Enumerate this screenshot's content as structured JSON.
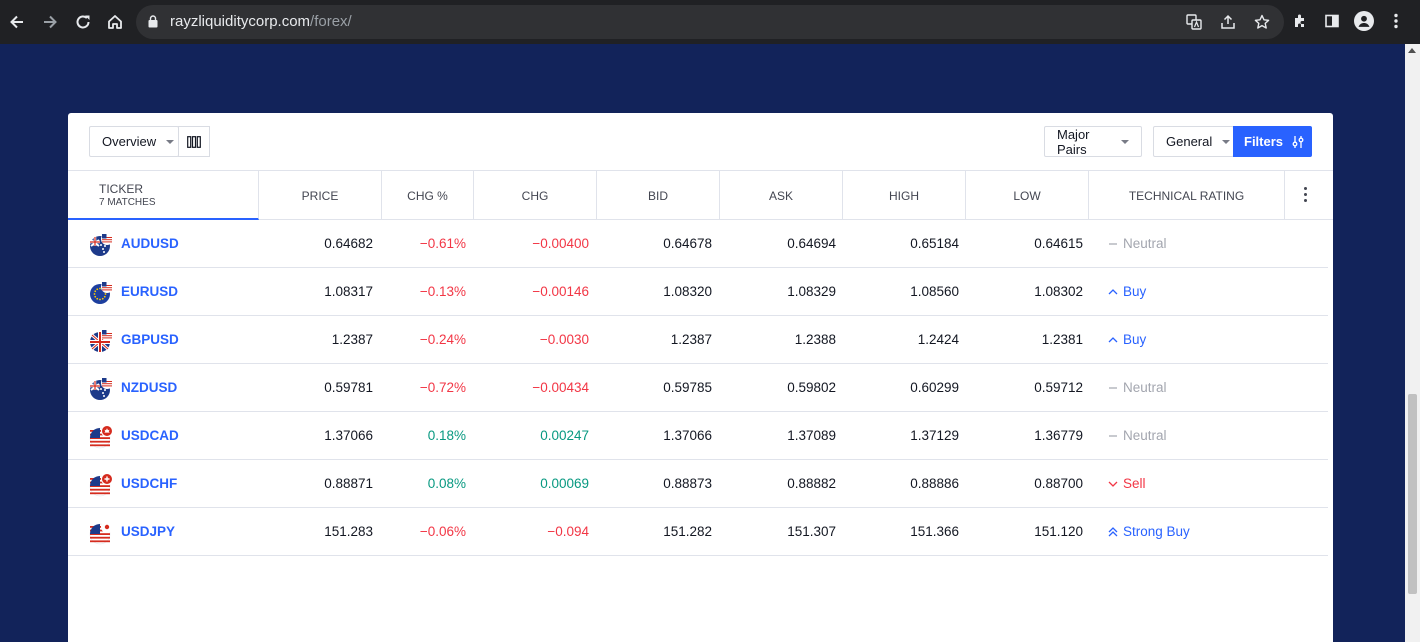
{
  "browser": {
    "url_domain": "rayzliquiditycorp.com",
    "url_path": "/forex/"
  },
  "toolbar": {
    "view_label": "Overview",
    "market_label": "Major Pairs",
    "category_label": "General",
    "filters_label": "Filters"
  },
  "table": {
    "ticker_header": "Ticker",
    "matches_label": "7 matches",
    "columns": [
      "Price",
      "Chg %",
      "Chg",
      "Bid",
      "Ask",
      "High",
      "Low",
      "Technical Rating"
    ],
    "rows": [
      {
        "symbol": "AUDUSD",
        "price": "0.64682",
        "chg_pct": "−0.61%",
        "chg": "−0.00400",
        "bid": "0.64678",
        "ask": "0.64694",
        "high": "0.65184",
        "low": "0.64615",
        "rating": "Neutral",
        "direction": "neg",
        "rating_type": "neutral",
        "flag": "au"
      },
      {
        "symbol": "EURUSD",
        "price": "1.08317",
        "chg_pct": "−0.13%",
        "chg": "−0.00146",
        "bid": "1.08320",
        "ask": "1.08329",
        "high": "1.08560",
        "low": "1.08302",
        "rating": "Buy",
        "direction": "neg",
        "rating_type": "buy",
        "flag": "eu"
      },
      {
        "symbol": "GBPUSD",
        "price": "1.2387",
        "chg_pct": "−0.24%",
        "chg": "−0.0030",
        "bid": "1.2387",
        "ask": "1.2388",
        "high": "1.2424",
        "low": "1.2381",
        "rating": "Buy",
        "direction": "neg",
        "rating_type": "buy",
        "flag": "gb"
      },
      {
        "symbol": "NZDUSD",
        "price": "0.59781",
        "chg_pct": "−0.72%",
        "chg": "−0.00434",
        "bid": "0.59785",
        "ask": "0.59802",
        "high": "0.60299",
        "low": "0.59712",
        "rating": "Neutral",
        "direction": "neg",
        "rating_type": "neutral",
        "flag": "nz"
      },
      {
        "symbol": "USDCAD",
        "price": "1.37066",
        "chg_pct": "0.18%",
        "chg": "0.00247",
        "bid": "1.37066",
        "ask": "1.37089",
        "high": "1.37129",
        "low": "1.36779",
        "rating": "Neutral",
        "direction": "pos",
        "rating_type": "neutral",
        "flag": "us-ca"
      },
      {
        "symbol": "USDCHF",
        "price": "0.88871",
        "chg_pct": "0.08%",
        "chg": "0.00069",
        "bid": "0.88873",
        "ask": "0.88882",
        "high": "0.88886",
        "low": "0.88700",
        "rating": "Sell",
        "direction": "pos",
        "rating_type": "sell",
        "flag": "us-ch"
      },
      {
        "symbol": "USDJPY",
        "price": "151.283",
        "chg_pct": "−0.06%",
        "chg": "−0.094",
        "bid": "151.282",
        "ask": "151.307",
        "high": "151.366",
        "low": "151.120",
        "rating": "Strong Buy",
        "direction": "neg",
        "rating_type": "strong-buy",
        "flag": "us-jp"
      }
    ]
  },
  "colors": {
    "accent": "#2962ff",
    "negative": "#f23645",
    "positive": "#089981",
    "neutral": "#a3a6af",
    "page_bg": "#12235a"
  }
}
